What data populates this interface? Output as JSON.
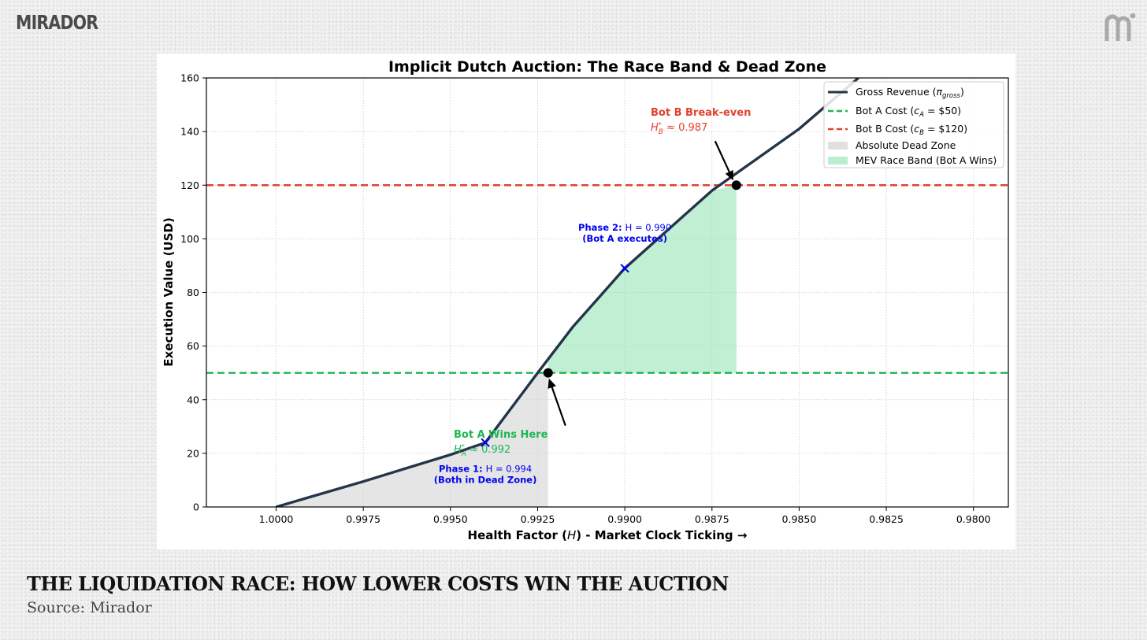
{
  "brand": {
    "name": "MIRADOR"
  },
  "footer": {
    "title": "THE LIQUIDATION RACE: HOW LOWER COSTS WIN THE AUCTION",
    "source": "Source: Mirador"
  },
  "colors": {
    "revenue": "#253549",
    "bot_a": "#1db653",
    "bot_b": "#e2412f",
    "dead_zone": "#d3d3d3",
    "race_band": "#8ee2ae",
    "phase": "#0000ee",
    "grid": "#c9c9c9"
  },
  "chart_data": {
    "type": "line",
    "title": "Implicit Dutch Auction: The Race Band & Dead Zone",
    "xlabel": "Health Factor (H) - Market Clock Ticking →",
    "ylabel": "Execution Value (USD)",
    "xlim": [
      1.002,
      0.979
    ],
    "ylim": [
      0,
      160
    ],
    "x_ticks": [
      1.0,
      0.9975,
      0.995,
      0.9925,
      0.99,
      0.9875,
      0.985,
      0.9825,
      0.98
    ],
    "x_tick_labels": [
      "1.0000",
      "0.9975",
      "0.9950",
      "0.9925",
      "0.9900",
      "0.9875",
      "0.9850",
      "0.9825",
      "0.9800"
    ],
    "y_ticks": [
      0,
      20,
      40,
      60,
      80,
      100,
      120,
      140,
      160
    ],
    "y_tick_labels": [
      "0",
      "20",
      "40",
      "60",
      "80",
      "100",
      "120",
      "140",
      "160"
    ],
    "grid": true,
    "legend_position": "top-right",
    "series": [
      {
        "name": "Gross Revenue (πgross)",
        "kind": "line",
        "x": [
          1.0,
          0.9975,
          0.995,
          0.994,
          0.9925,
          0.9915,
          0.99,
          0.9875,
          0.985,
          0.9833
        ],
        "y": [
          0,
          9.5,
          19.5,
          24,
          50,
          67,
          89,
          118,
          141,
          160
        ]
      },
      {
        "name": "Bot A Cost (cA = $50)",
        "kind": "hline",
        "y": 50
      },
      {
        "name": "Bot B Cost (cB = $120)",
        "kind": "hline",
        "y": 120
      },
      {
        "name": "Absolute Dead Zone",
        "kind": "fill",
        "x_range": [
          1.0,
          0.9922
        ],
        "y_range": [
          0,
          50
        ]
      },
      {
        "name": "MEV Race Band (Bot A Wins)",
        "kind": "fill",
        "x_range": [
          0.9922,
          0.9868
        ],
        "y_range": [
          50,
          120
        ]
      }
    ],
    "legend": [
      {
        "label": "Gross Revenue (",
        "symbol": "π",
        "subscript": "gross",
        "suffix": ")"
      },
      {
        "label": "Bot A Cost (",
        "symbol": "c",
        "subscript": "A",
        "suffix": " = $50)"
      },
      {
        "label": "Bot B Cost (",
        "symbol": "c",
        "subscript": "B",
        "suffix": " = $120)"
      },
      {
        "label": "Absolute Dead Zone"
      },
      {
        "label": "MEV Race Band (Bot A Wins)"
      }
    ],
    "points": [
      {
        "name": "bot-a-breakeven",
        "x": 0.9922,
        "y": 50
      },
      {
        "name": "bot-b-breakeven",
        "x": 0.9868,
        "y": 120
      }
    ],
    "phase_markers": [
      {
        "name": "phase-1",
        "x": 0.994,
        "y": 24,
        "label": "Phase 1:",
        "value": "H = 0.994",
        "sublabel": "(Both in Dead Zone)"
      },
      {
        "name": "phase-2",
        "x": 0.99,
        "y": 89,
        "label": "Phase 2:",
        "value": "H = 0.990",
        "sublabel": "(Bot A executes)"
      }
    ],
    "annotations": [
      {
        "name": "bot-a-wins",
        "title": "Bot A Wins Here",
        "value": "≈ 0.992",
        "symbol": "H",
        "sub": "A",
        "sup": "*"
      },
      {
        "name": "bot-b-breakeven",
        "title": "Bot B Break-even",
        "value": "≈ 0.987",
        "symbol": "H",
        "sub": "B",
        "sup": "*"
      }
    ]
  }
}
